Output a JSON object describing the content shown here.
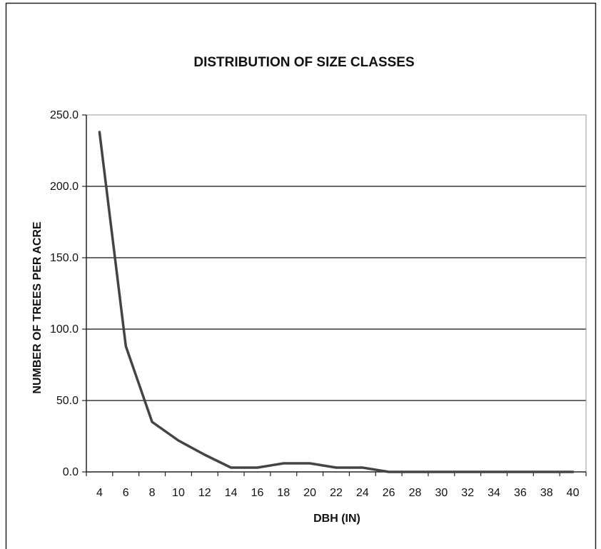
{
  "chart_data": {
    "type": "line",
    "title": "DISTRIBUTION OF SIZE CLASSES",
    "xlabel": "DBH (IN)",
    "ylabel": "NUMBER OF TREES PER ACRE",
    "x": [
      4,
      6,
      8,
      10,
      12,
      14,
      16,
      18,
      20,
      22,
      24,
      26,
      28,
      30,
      32,
      34,
      36,
      38,
      40
    ],
    "x_tick_labels": [
      "4",
      "6",
      "8",
      "10",
      "12",
      "14",
      "16",
      "18",
      "20",
      "22",
      "24",
      "26",
      "28",
      "30",
      "32",
      "34",
      "36",
      "38",
      "40"
    ],
    "y_tick_labels": [
      "0.0",
      "50.0",
      "100.0",
      "150.0",
      "200.0",
      "250.0"
    ],
    "y_ticks": [
      0,
      50,
      100,
      150,
      200,
      250
    ],
    "ylim": [
      0,
      250
    ],
    "series": [
      {
        "values": [
          238,
          88,
          35,
          22,
          12,
          3,
          3,
          6,
          6,
          3,
          3,
          0,
          0,
          0,
          0,
          0,
          0,
          0,
          0
        ],
        "color": "#444444"
      }
    ],
    "grid": "horizontal major gridlines",
    "legend": "none"
  }
}
